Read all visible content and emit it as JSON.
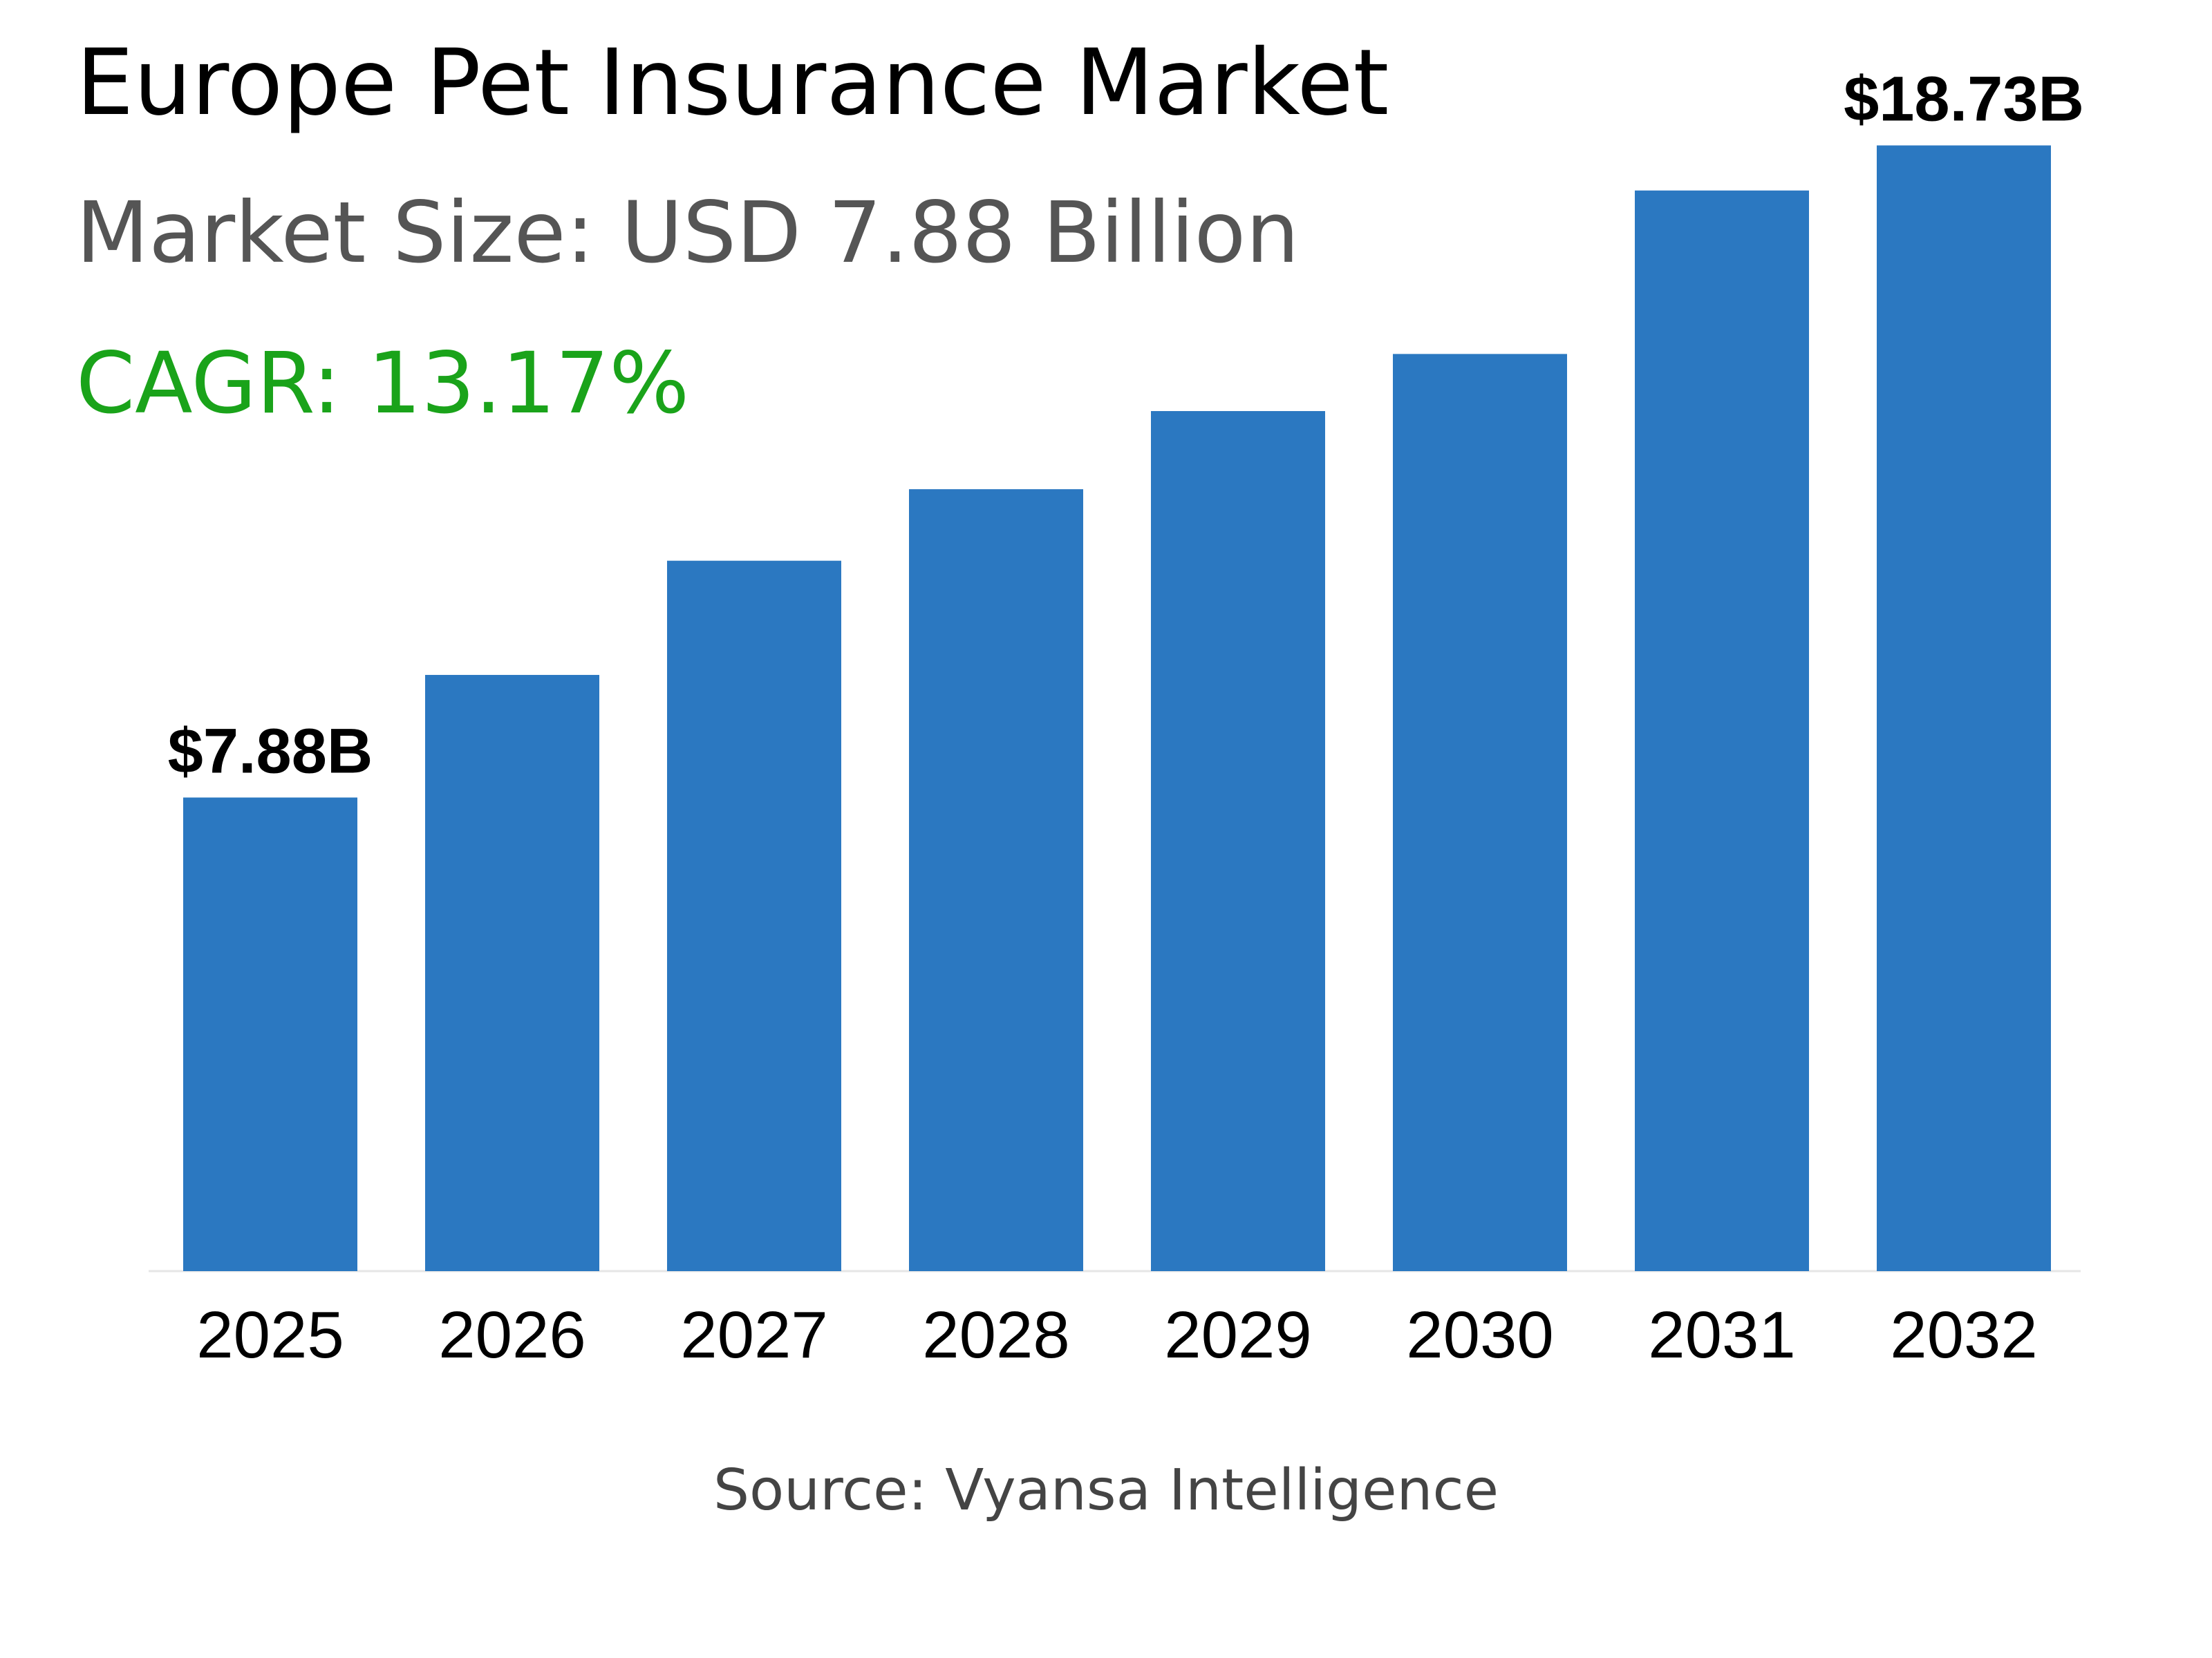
{
  "header": {
    "title": "Europe Pet Insurance Market",
    "market_size": "Market Size: USD 7.88 Billion",
    "cagr": "CAGR: 13.17%"
  },
  "footer": {
    "source": "Source: Vyansa Intelligence"
  },
  "colors": {
    "bar": "#2b78c1",
    "cagr": "#1aa31a",
    "subtitle": "#555555"
  },
  "chart_data": {
    "type": "bar",
    "categories": [
      "2025",
      "2026",
      "2027",
      "2028",
      "2029",
      "2030",
      "2031",
      "2032"
    ],
    "values": [
      7.88,
      9.92,
      11.82,
      13.01,
      14.31,
      15.26,
      17.98,
      18.73
    ],
    "data_labels": [
      {
        "index": 0,
        "text": "$7.88B"
      },
      {
        "index": 7,
        "text": "$18.73B"
      }
    ],
    "ylim": [
      0,
      20
    ],
    "grid": false
  }
}
